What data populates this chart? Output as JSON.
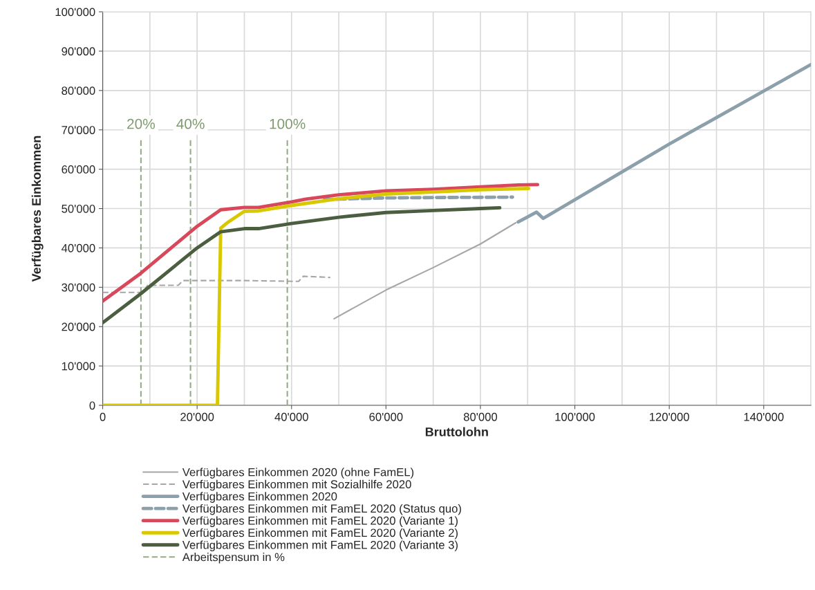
{
  "chart_data": {
    "type": "line",
    "xlabel": "Bruttolohn",
    "ylabel": "Verfügbares Einkommen",
    "xlim": [
      0,
      150000
    ],
    "ylim": [
      0,
      100000
    ],
    "xticks": [
      0,
      {
        "value": 20000,
        "label": "20'000"
      },
      {
        "value": 40000,
        "label": "40'000"
      },
      {
        "value": 60000,
        "label": "60'000"
      },
      {
        "value": 80000,
        "label": "80'000"
      },
      {
        "value": 100000,
        "label": "100'000"
      },
      {
        "value": 120000,
        "label": "120'000"
      },
      {
        "value": 140000,
        "label": "140'000"
      }
    ],
    "yticks": [
      0,
      {
        "value": 10000,
        "label": "10'000"
      },
      {
        "value": 20000,
        "label": "20'000"
      },
      {
        "value": 30000,
        "label": "30'000"
      },
      {
        "value": 40000,
        "label": "40'000"
      },
      {
        "value": 50000,
        "label": "50'000"
      },
      {
        "value": 60000,
        "label": "60'000"
      },
      {
        "value": 70000,
        "label": "70'000"
      },
      {
        "value": 80000,
        "label": "80'000"
      },
      {
        "value": 90000,
        "label": "90'000"
      },
      {
        "value": 100000,
        "label": "100'000"
      }
    ],
    "grid": true,
    "legend": "bottom",
    "marker": "none",
    "series": [
      {
        "name": "Verfügbares Einkommen 2020 (ohne FamEL)",
        "color": "#a6a6a6",
        "line_style": "solid",
        "x": [
          49000,
          60000,
          70000,
          80000,
          87500
        ],
        "values": [
          22000,
          29300,
          35000,
          41000,
          46400
        ]
      },
      {
        "name": "Verfügbares Einkommen mit Sozialhilfe 2020",
        "color": "#a6a6a6",
        "line_style": "dashed",
        "x": [
          0,
          8500,
          9500,
          16000,
          17000,
          30000,
          41500,
          42500,
          48200
        ],
        "values": [
          28700,
          28700,
          30500,
          30500,
          31700,
          31700,
          31500,
          32800,
          32500
        ]
      },
      {
        "name": "Verfügbares Einkommen 2020",
        "color": "#8ca0ab",
        "line_style": "solid",
        "x": [
          88000,
          91900,
          93300,
          120000,
          150000
        ],
        "values": [
          46600,
          49100,
          47500,
          66400,
          86600
        ]
      },
      {
        "name": "Verfügbares Einkommen mit FamEL 2020 (Status quo)",
        "color": "#8ca0ab",
        "line_style": "dashed",
        "x": [
          47000,
          50000,
          60000,
          70000,
          86800
        ],
        "values": [
          52300,
          52400,
          52700,
          52800,
          52900
        ]
      },
      {
        "name": "Verfügbares Einkommen mit FamEL 2020 (Variante 1)",
        "color": "#d9485a",
        "line_style": "solid",
        "x": [
          0,
          8000,
          20000,
          25000,
          30000,
          33000,
          40000,
          43000,
          50000,
          60000,
          70000,
          80000,
          88000,
          92100
        ],
        "values": [
          26500,
          33500,
          45500,
          49700,
          50300,
          50300,
          51700,
          52400,
          53500,
          54500,
          54900,
          55500,
          56000,
          56100
        ]
      },
      {
        "name": "Verfügbares Einkommen mit FamEL 2020 (Variante 2)",
        "color": "#d9c800",
        "line_style": "solid",
        "x": [
          0,
          24300,
          25000,
          26500,
          30000,
          33000,
          40000,
          50000,
          60000,
          70000,
          80000,
          90200
        ],
        "values": [
          0,
          0,
          45000,
          46500,
          49300,
          49400,
          50800,
          52500,
          53700,
          54200,
          54800,
          55100
        ]
      },
      {
        "name": "Verfügbares Einkommen mit FamEL 2020 (Variante 3)",
        "color": "#4b5e3f",
        "line_style": "solid",
        "x": [
          0,
          8000,
          20000,
          25000,
          30000,
          33000,
          40000,
          50000,
          60000,
          70000,
          80000,
          84100
        ],
        "values": [
          21000,
          28300,
          40000,
          44100,
          44900,
          44900,
          46200,
          47800,
          49000,
          49500,
          50000,
          50200
        ]
      },
      {
        "name": "Arbeitspensum in %",
        "color": "#93ab87",
        "line_style": "dashed",
        "x": [
          8100,
          8100,
          null,
          18600,
          18600,
          null,
          39100,
          39100
        ],
        "values": [
          0,
          67800,
          null,
          0,
          67800,
          null,
          0,
          67800
        ]
      }
    ],
    "annotations": [
      "20%",
      "40%",
      "100%"
    ]
  }
}
